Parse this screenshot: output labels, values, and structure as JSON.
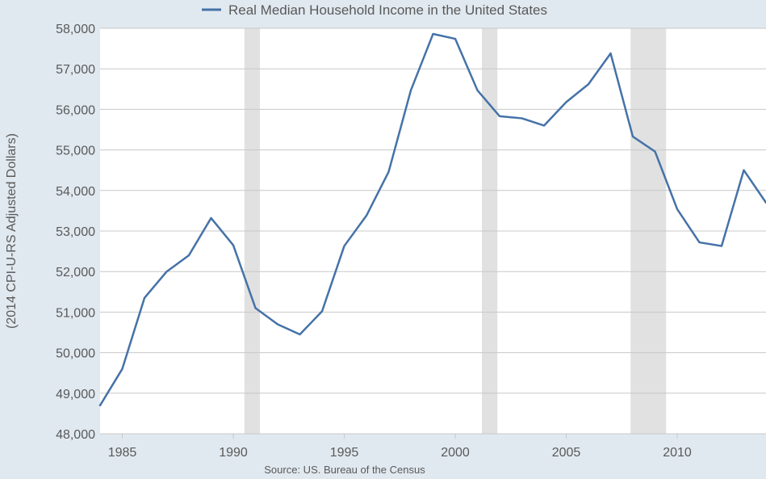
{
  "chart_data": {
    "type": "line",
    "legend": {
      "label": "Real Median Household Income in the United States",
      "position": "top-center"
    },
    "ylabel": "(2014 CPI-U-RS Adjusted Dollars)",
    "xlabel": "",
    "source": "Source: US. Bureau of the Census",
    "xlim": [
      1984,
      2014
    ],
    "ylim": [
      48000,
      58000
    ],
    "x_ticks": [
      1985,
      1990,
      1995,
      2000,
      2005,
      2010
    ],
    "y_ticks": [
      "48,000",
      "49,000",
      "50,000",
      "51,000",
      "52,000",
      "53,000",
      "54,000",
      "55,000",
      "56,000",
      "57,000",
      "58,000"
    ],
    "grid": "horizontal",
    "recessions": [
      [
        1990.5,
        1991.2
      ],
      [
        2001.2,
        2001.9
      ],
      [
        2007.9,
        2009.5
      ]
    ],
    "series": [
      {
        "name": "Real Median Household Income in the United States",
        "color": "#4572a7",
        "x": [
          1984,
          1985,
          1986,
          1987,
          1988,
          1989,
          1990,
          1991,
          1992,
          1993,
          1994,
          1995,
          1996,
          1997,
          1998,
          1999,
          2000,
          2001,
          2002,
          2003,
          2004,
          2005,
          2006,
          2007,
          2008,
          2009,
          2010,
          2011,
          2012,
          2013,
          2014
        ],
        "values": [
          48700,
          49600,
          51350,
          52000,
          52400,
          53320,
          52650,
          51100,
          50700,
          50450,
          51020,
          52630,
          53380,
          54460,
          56470,
          57860,
          57740,
          56470,
          55830,
          55780,
          55600,
          56180,
          56620,
          57380,
          55330,
          54960,
          53540,
          52720,
          52630,
          54500,
          53700
        ]
      }
    ],
    "colors": {
      "background": "#e1e9f0",
      "plot_background": "#ffffff",
      "grid": "#c8c8c8",
      "recession": "#e1e1e1",
      "text": "#595959",
      "line": "#4572a7"
    }
  }
}
